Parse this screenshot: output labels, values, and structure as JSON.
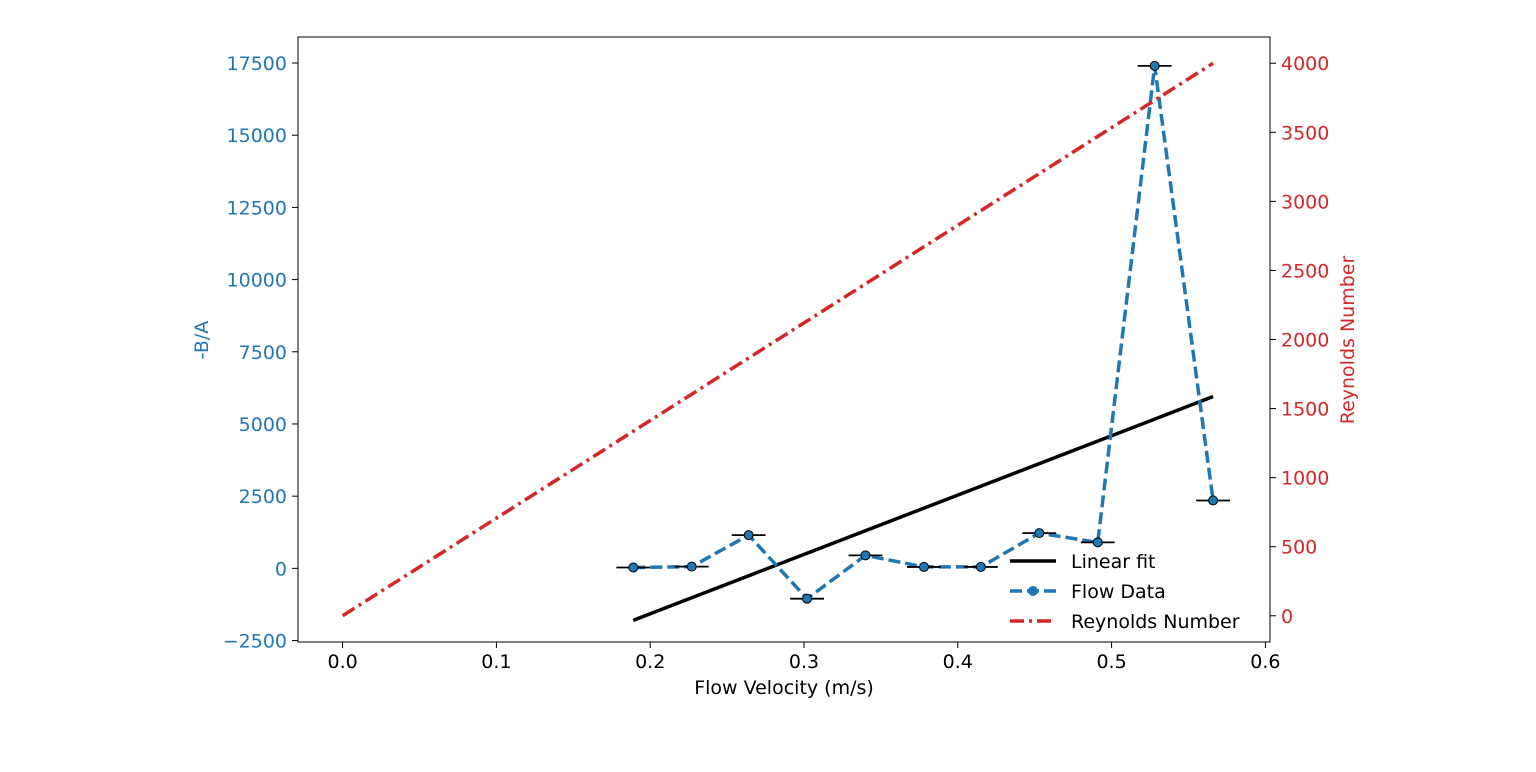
{
  "chart_data": {
    "type": "line",
    "title": "",
    "xlabel": "Flow Velocity (m/s)",
    "ylabel": "-B/A",
    "y2label": "Reynolds Number",
    "xlim": [
      -0.029,
      0.603
    ],
    "ylim": [
      -2550,
      18400
    ],
    "y2lim": [
      -190,
      4190
    ],
    "x_ticks": [
      0.0,
      0.1,
      0.2,
      0.3,
      0.4,
      0.5,
      0.6
    ],
    "x_tick_labels": [
      "0.0",
      "0.1",
      "0.2",
      "0.3",
      "0.4",
      "0.5",
      "0.6"
    ],
    "y_ticks": [
      -2500,
      0,
      2500,
      5000,
      7500,
      10000,
      12500,
      15000,
      17500
    ],
    "y_tick_labels": [
      "−2500",
      "0",
      "2500",
      "5000",
      "7500",
      "10000",
      "12500",
      "15000",
      "17500"
    ],
    "y2_ticks": [
      0,
      500,
      1000,
      1500,
      2000,
      2500,
      3000,
      3500,
      4000
    ],
    "y2_tick_labels": [
      "0",
      "500",
      "1000",
      "1500",
      "2000",
      "2500",
      "3000",
      "3500",
      "4000"
    ],
    "grid": false,
    "legend_position": "lower-right",
    "colors": {
      "left_axis": "#1f77b4",
      "right_axis": "#d62728",
      "linear_fit": "#000000",
      "flow_data": "#1f77b4",
      "reynolds": "#d62728",
      "errorbar": "#000000"
    },
    "series": [
      {
        "name": "Linear fit",
        "axis": "left",
        "style": "solid",
        "x": [
          0.189,
          0.566
        ],
        "y": [
          -1800,
          5950
        ]
      },
      {
        "name": "Flow Data",
        "axis": "left",
        "style": "dashed-markers",
        "x": [
          0.189,
          0.227,
          0.264,
          0.302,
          0.34,
          0.378,
          0.415,
          0.453,
          0.491,
          0.528,
          0.566
        ],
        "y": [
          30,
          60,
          1150,
          -1050,
          450,
          50,
          50,
          1220,
          900,
          17400,
          2350
        ],
        "xerr": 0.011
      },
      {
        "name": "Reynolds Number",
        "axis": "right",
        "style": "dash-dot",
        "x": [
          0.0,
          0.566
        ],
        "y": [
          0,
          4000
        ]
      }
    ]
  }
}
